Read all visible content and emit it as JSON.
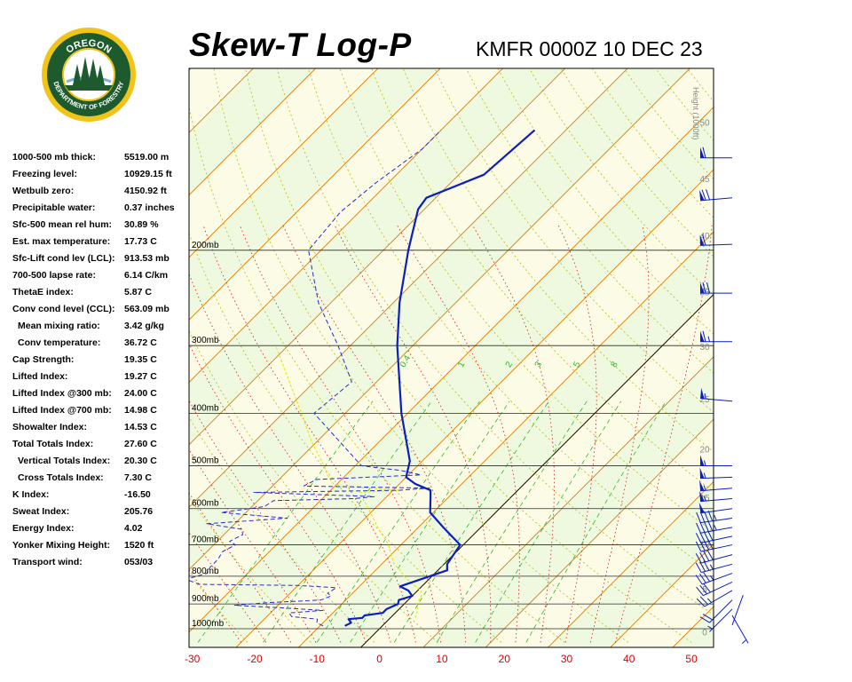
{
  "header": {
    "title": "Skew-T Log-P",
    "station": "KMFR 0000Z 10 DEC 23"
  },
  "logo": {
    "top_text": "OREGON",
    "bottom_text": "DEPARTMENT OF FORESTRY"
  },
  "indices": [
    {
      "label": "1000-500 mb thick:",
      "value": "5519.00 m"
    },
    {
      "label": "Freezing level:",
      "value": "10929.15 ft"
    },
    {
      "label": "Wetbulb zero:",
      "value": "4150.92 ft"
    },
    {
      "label": "Precipitable water:",
      "value": "0.37 inches"
    },
    {
      "label": "Sfc-500 mean rel hum:",
      "value": "30.89 %"
    },
    {
      "label": "Est. max temperature:",
      "value": "17.73 C"
    },
    {
      "label": "Sfc-Lift cond lev (LCL):",
      "value": "913.53 mb"
    },
    {
      "label": "700-500 lapse rate:",
      "value": "6.14 C/km"
    },
    {
      "label": "ThetaE index:",
      "value": "5.87 C"
    },
    {
      "label": "Conv cond level (CCL):",
      "value": "563.09 mb"
    },
    {
      "label": "Mean mixing ratio:",
      "value": "3.42 g/kg",
      "indent": true
    },
    {
      "label": "Conv temperature:",
      "value": "36.72 C",
      "indent": true
    },
    {
      "label": "Cap Strength:",
      "value": "19.35 C"
    },
    {
      "label": "Lifted Index:",
      "value": "19.27 C"
    },
    {
      "label": "Lifted Index @300 mb:",
      "value": "24.00 C"
    },
    {
      "label": "Lifted Index @700 mb:",
      "value": "14.98 C"
    },
    {
      "label": "Showalter Index:",
      "value": "14.53 C"
    },
    {
      "label": "Total Totals Index:",
      "value": "27.60 C"
    },
    {
      "label": "Vertical Totals Index:",
      "value": "20.30 C",
      "indent": true
    },
    {
      "label": "Cross Totals Index:",
      "value": "7.30 C",
      "indent": true
    },
    {
      "label": "K Index:",
      "value": "-16.50"
    },
    {
      "label": "Sweat Index:",
      "value": "205.76"
    },
    {
      "label": "Energy Index:",
      "value": "4.02"
    },
    {
      "label": "Yonker Mixing Height:",
      "value": "1520 ft"
    },
    {
      "label": "Transport wind:",
      "value": "053/03"
    }
  ],
  "colors": {
    "background_band_a": "#eff9df",
    "background_band_b": "#fbfbe6",
    "isobar": "#2a2a2a",
    "isotherm": "#e07a00",
    "dry_adiabat": "#b8b818",
    "moist_adiabat": "#d81818",
    "mixing_ratio": "#2db82d",
    "temperature": "#0b1fc0",
    "dewpoint": "#2a2ad8",
    "parcel": "#e8e800",
    "wind_barb": "#0b1fc0",
    "x_tick_label": "#e00000",
    "height_label": "#8a8a8a"
  },
  "chart_data": {
    "type": "line",
    "title": "Skew-T Log-P",
    "subtitle": "KMFR 0000Z 10 DEC 23",
    "x": {
      "label": "",
      "unit": "C",
      "ticks": [
        -30,
        -20,
        -10,
        0,
        10,
        20,
        30,
        40,
        50
      ]
    },
    "pressure_levels": [
      {
        "p": 200,
        "label": "200mb"
      },
      {
        "p": 300,
        "label": "300mb"
      },
      {
        "p": 400,
        "label": "400mb"
      },
      {
        "p": 500,
        "label": "500mb"
      },
      {
        "p": 600,
        "label": "600mb"
      },
      {
        "p": 700,
        "label": "700mb"
      },
      {
        "p": 800,
        "label": "800mb"
      },
      {
        "p": 900,
        "label": "900mb"
      },
      {
        "p": 1000,
        "label": "1000mb"
      }
    ],
    "height_axis": {
      "label": "Height (1000ft)",
      "ticks": [
        {
          "kft": 0,
          "label": "0"
        },
        {
          "kft": 5,
          "label": "5"
        },
        {
          "kft": 10,
          "label": "10"
        },
        {
          "kft": 15,
          "label": "15"
        },
        {
          "kft": 20,
          "label": "20"
        },
        {
          "kft": 25,
          "label": "25"
        },
        {
          "kft": 30,
          "label": "30"
        },
        {
          "kft": 35,
          "label": "35"
        },
        {
          "kft": 40,
          "label": "40"
        },
        {
          "kft": 45,
          "label": "45"
        },
        {
          "kft": 50,
          "label": "50"
        }
      ]
    },
    "mixing_ratio_labels": [
      "0.4",
      "1",
      "2",
      "3",
      "5",
      "8"
    ],
    "series": [
      {
        "kind": "temperature",
        "points": [
          [
            988,
            -6.0
          ],
          [
            975,
            -5.5
          ],
          [
            960,
            -6.5
          ],
          [
            955,
            -4.5
          ],
          [
            945,
            -4.5
          ],
          [
            935,
            -2.0
          ],
          [
            920,
            -2.0
          ],
          [
            900,
            -1.0
          ],
          [
            885,
            -1.5
          ],
          [
            870,
            0.0
          ],
          [
            850,
            -1.5
          ],
          [
            835,
            -3.5
          ],
          [
            780,
            1.5
          ],
          [
            760,
            0.5
          ],
          [
            700,
            -0.5
          ],
          [
            650,
            -6.0
          ],
          [
            610,
            -10.5
          ],
          [
            570,
            -13.0
          ],
          [
            555,
            -14.0
          ],
          [
            540,
            -17.5
          ],
          [
            525,
            -20.0
          ],
          [
            490,
            -22.0
          ],
          [
            400,
            -31.0
          ],
          [
            300,
            -42.5
          ],
          [
            250,
            -49.0
          ],
          [
            200,
            -56.0
          ],
          [
            168,
            -61.0
          ],
          [
            160,
            -61.5
          ],
          [
            145,
            -56.0
          ],
          [
            120,
            -55.0
          ]
        ]
      },
      {
        "kind": "dewpoint",
        "points": [
          [
            988,
            -9.5
          ],
          [
            975,
            -11.0
          ],
          [
            960,
            -11.5
          ],
          [
            950,
            -16.0
          ],
          [
            935,
            -17.0
          ],
          [
            925,
            -12.0
          ],
          [
            915,
            -19.0
          ],
          [
            905,
            -27.0
          ],
          [
            895,
            -22.0
          ],
          [
            885,
            -14.0
          ],
          [
            870,
            -13.0
          ],
          [
            860,
            -14.0
          ],
          [
            840,
            -13.5
          ],
          [
            832,
            -20.0
          ],
          [
            828,
            -36.0
          ],
          [
            810,
            -39.0
          ],
          [
            790,
            -36.5
          ],
          [
            770,
            -37.0
          ],
          [
            745,
            -37.0
          ],
          [
            720,
            -37.5
          ],
          [
            700,
            -36.5
          ],
          [
            690,
            -38.0
          ],
          [
            670,
            -37.0
          ],
          [
            655,
            -38.0
          ],
          [
            640,
            -44.5
          ],
          [
            625,
            -32.5
          ],
          [
            610,
            -44.0
          ],
          [
            595,
            -38.0
          ],
          [
            580,
            -37.5
          ],
          [
            575,
            -25.0
          ],
          [
            570,
            -22.0
          ],
          [
            560,
            -42.0
          ],
          [
            555,
            -19.0
          ],
          [
            550,
            -14.5
          ],
          [
            545,
            -35.0
          ],
          [
            530,
            -34.0
          ],
          [
            520,
            -18.0
          ],
          [
            510,
            -22.0
          ],
          [
            500,
            -29.0
          ],
          [
            400,
            -45.0
          ],
          [
            350,
            -44.0
          ],
          [
            300,
            -52.0
          ],
          [
            250,
            -62.0
          ],
          [
            200,
            -72.0
          ],
          [
            170,
            -73.0
          ],
          [
            150,
            -72.0
          ],
          [
            130,
            -70.0
          ],
          [
            120,
            -70.0
          ]
        ]
      },
      {
        "kind": "parcel",
        "points": [
          [
            955,
            4.0
          ],
          [
            920,
            3.0
          ],
          [
            900,
            2.0
          ],
          [
            870,
            1.5
          ],
          [
            850,
            0.5
          ],
          [
            830,
            -1.5
          ],
          [
            800,
            -4.5
          ],
          [
            780,
            -6.0
          ],
          [
            760,
            -8.0
          ],
          [
            700,
            -12.0
          ],
          [
            650,
            -16.5
          ],
          [
            600,
            -21.0
          ],
          [
            575,
            -23.5
          ],
          [
            560,
            -25.0
          ],
          [
            555,
            -19.0
          ],
          [
            545,
            -30.0
          ],
          [
            520,
            -33.0
          ],
          [
            500,
            -35.0
          ],
          [
            450,
            -41.0
          ],
          [
            400,
            -47.0
          ],
          [
            350,
            -54.0
          ],
          [
            300,
            -62.0
          ]
        ]
      }
    ],
    "wind_barbs": [
      {
        "p": 985,
        "dir": 20,
        "speed": 2
      },
      {
        "p": 945,
        "dir": 150,
        "speed": 4
      },
      {
        "p": 920,
        "dir": 225,
        "speed": 5
      },
      {
        "p": 885,
        "dir": 225,
        "speed": 20
      },
      {
        "p": 850,
        "dir": 240,
        "speed": 25
      },
      {
        "p": 820,
        "dir": 245,
        "speed": 30
      },
      {
        "p": 790,
        "dir": 250,
        "speed": 35
      },
      {
        "p": 760,
        "dir": 255,
        "speed": 35
      },
      {
        "p": 730,
        "dir": 255,
        "speed": 40
      },
      {
        "p": 700,
        "dir": 258,
        "speed": 40
      },
      {
        "p": 675,
        "dir": 258,
        "speed": 40
      },
      {
        "p": 650,
        "dir": 260,
        "speed": 45
      },
      {
        "p": 625,
        "dir": 262,
        "speed": 45
      },
      {
        "p": 600,
        "dir": 262,
        "speed": 50
      },
      {
        "p": 575,
        "dir": 265,
        "speed": 55
      },
      {
        "p": 550,
        "dir": 265,
        "speed": 55
      },
      {
        "p": 525,
        "dir": 268,
        "speed": 55
      },
      {
        "p": 500,
        "dir": 270,
        "speed": 55
      },
      {
        "p": 380,
        "dir": 275,
        "speed": 55
      },
      {
        "p": 295,
        "dir": 270,
        "speed": 65
      },
      {
        "p": 240,
        "dir": 270,
        "speed": 70
      },
      {
        "p": 195,
        "dir": 268,
        "speed": 60
      },
      {
        "p": 160,
        "dir": 265,
        "speed": 70
      },
      {
        "p": 135,
        "dir": 270,
        "speed": 60
      }
    ]
  }
}
